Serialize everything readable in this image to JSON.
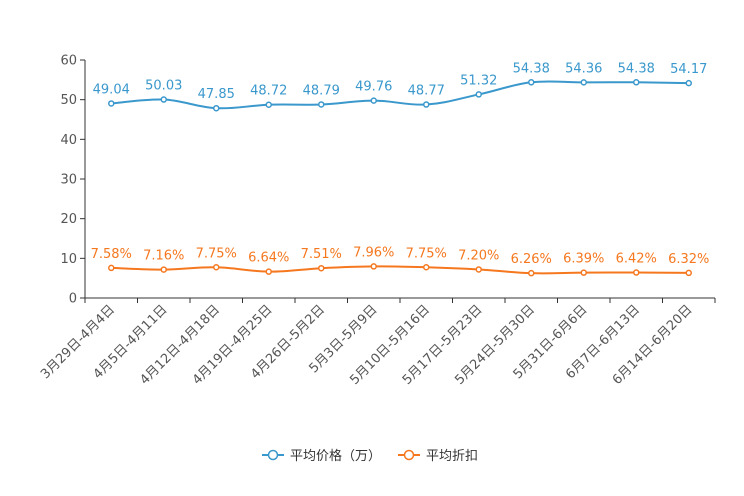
{
  "chart_data": {
    "type": "line",
    "title": "",
    "xlabel": "",
    "ylabel": "",
    "ylim": [
      0,
      60
    ],
    "yticks": [
      0,
      10,
      20,
      30,
      40,
      50,
      60
    ],
    "grid": false,
    "legend_position": "bottom-center",
    "categories": [
      "3月29日-4月4日",
      "4月5日-4月11日",
      "4月12日-4月18日",
      "4月19日-4月25日",
      "4月26日-5月2日",
      "5月3日-5月9日",
      "5月10日-5月16日",
      "5月17日-5月23日",
      "5月24日-5月30日",
      "5月31日-6月6日",
      "6月7日-6月13日",
      "6月14日-6月20日"
    ],
    "series": [
      {
        "name": "平均价格（万）",
        "color": "#3a98cc",
        "values": [
          49.04,
          50.03,
          47.85,
          48.72,
          48.79,
          49.76,
          48.77,
          51.32,
          54.38,
          54.36,
          54.38,
          54.17
        ],
        "labels": [
          "49.04",
          "50.03",
          "47.85",
          "48.72",
          "48.79",
          "49.76",
          "48.77",
          "51.32",
          "54.38",
          "54.36",
          "54.38",
          "54.17"
        ]
      },
      {
        "name": "平均折扣",
        "color": "#f5781f",
        "values": [
          7.58,
          7.16,
          7.75,
          6.64,
          7.51,
          7.96,
          7.75,
          7.2,
          6.26,
          6.39,
          6.42,
          6.32
        ],
        "labels": [
          "7.58%",
          "7.16%",
          "7.75%",
          "6.64%",
          "7.51%",
          "7.96%",
          "7.75%",
          "7.20%",
          "6.26%",
          "6.39%",
          "6.42%",
          "6.32%"
        ]
      }
    ]
  }
}
